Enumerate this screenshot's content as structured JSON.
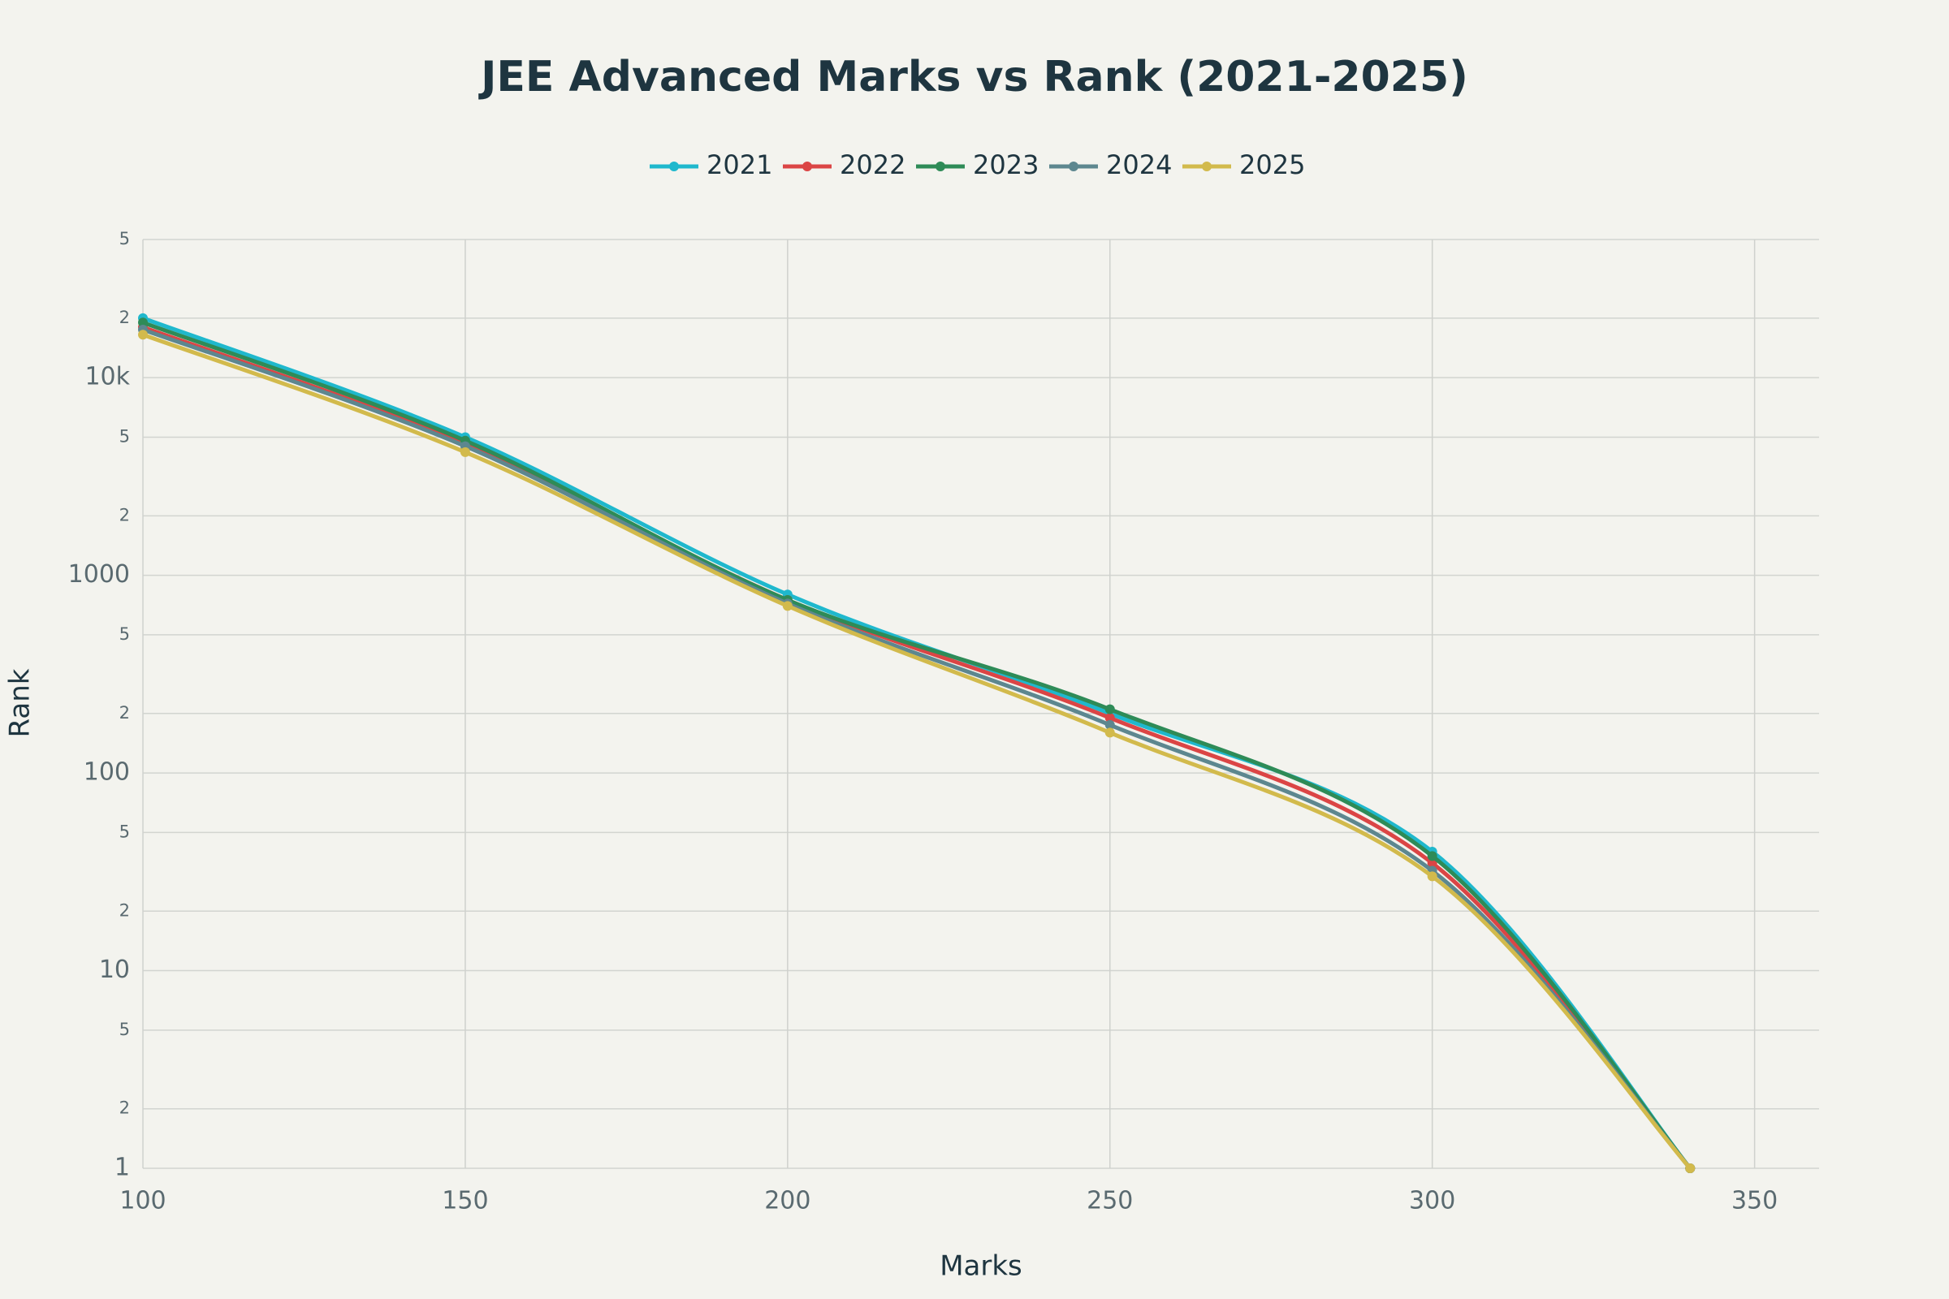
{
  "chart_data": {
    "type": "line",
    "title": "JEE Advanced Marks vs Rank (2021-2025)",
    "x_label": "Marks",
    "y_label": "Rank",
    "x": [
      100,
      150,
      200,
      250,
      300,
      340
    ],
    "series": [
      {
        "name": "2021",
        "color": "#1fb8cd",
        "values": [
          20000,
          5000,
          800,
          200,
          40,
          1
        ]
      },
      {
        "name": "2022",
        "color": "#db4545",
        "values": [
          18000,
          4600,
          750,
          190,
          35,
          1
        ]
      },
      {
        "name": "2023",
        "color": "#2e8b57",
        "values": [
          19000,
          4800,
          750,
          210,
          38,
          1
        ]
      },
      {
        "name": "2024",
        "color": "#5d878f",
        "values": [
          17500,
          4500,
          720,
          175,
          32,
          1
        ]
      },
      {
        "name": "2025",
        "color": "#d2ba4c",
        "values": [
          16500,
          4200,
          700,
          160,
          30,
          1
        ]
      }
    ],
    "xlim": [
      100,
      360
    ],
    "xticks": [
      100,
      150,
      200,
      250,
      300,
      350
    ],
    "ylim": [
      1,
      50000
    ],
    "log_y": true,
    "yticks": [
      1,
      2,
      5,
      10,
      {
        "value": 20,
        "label": "2"
      },
      {
        "value": 50,
        "label": "5"
      },
      100,
      {
        "value": 200,
        "label": "2"
      },
      {
        "value": 500,
        "label": "5"
      },
      1000,
      {
        "value": 2000,
        "label": "2"
      },
      {
        "value": 5000,
        "label": "5"
      },
      {
        "value": 10000,
        "label": "10k"
      },
      {
        "value": 20000,
        "label": "2"
      },
      {
        "value": 50000,
        "label": "5"
      }
    ],
    "grid": true
  }
}
